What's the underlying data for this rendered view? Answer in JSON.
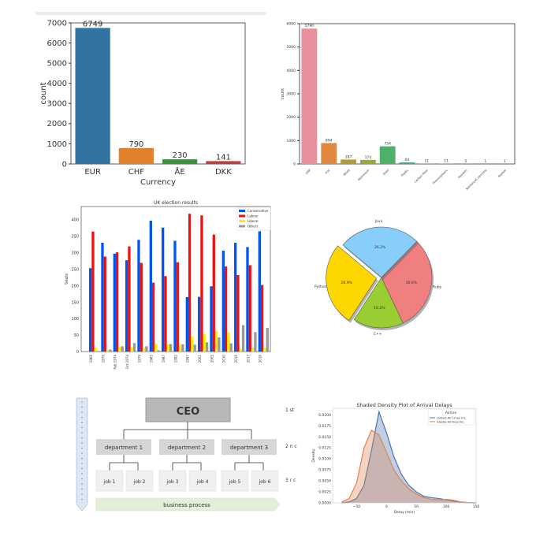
{
  "chart_data": [
    {
      "type": "bar",
      "categories": [
        "EUR",
        "CHF",
        "ÅE",
        "DKK"
      ],
      "values": [
        6749,
        790,
        230,
        141
      ],
      "colors": [
        "#3274a1",
        "#e1812c",
        "#3a923a",
        "#c03d3e"
      ],
      "xlabel": "Currency",
      "ylabel": "count",
      "ylim": [
        0,
        7000
      ],
      "yticks": [
        0,
        1000,
        2000,
        3000,
        4000,
        5000,
        6000,
        7000
      ]
    },
    {
      "type": "bar",
      "categories": [
        "GRP",
        "PVC",
        "Wood",
        "Aluminium",
        "Steel",
        "Plastic",
        "Carbon Fiber",
        "Thermoplastic",
        "Hypalon",
        "Reinforced concrete",
        "Rubber"
      ],
      "values": [
        5790,
        894,
        187,
        174,
        754,
        64,
        11,
        11,
        5,
        1,
        1
      ],
      "colors": [
        "#e8919c",
        "#e0883f",
        "#b09a3a",
        "#9aa83a",
        "#4fb06a",
        "#3aa890",
        "#3aa8a8",
        "#4aa8c8",
        "#8aa0e0",
        "#c090e0",
        "#e08cc8"
      ],
      "ylabel": "count",
      "ylim": [
        0,
        6000
      ],
      "yticks": [
        0,
        1000,
        2000,
        3000,
        4000,
        5000,
        6000
      ]
    },
    {
      "type": "bar",
      "title": "UK election results",
      "ylabel": "Seats",
      "categories": [
        "1966",
        "1970",
        "Feb 1974",
        "Oct 1974",
        "1979",
        "1983",
        "1987",
        "1992",
        "1997",
        "2001",
        "2005",
        "2010",
        "2015",
        "2017",
        "2019"
      ],
      "series": [
        {
          "name": "Conservative",
          "color": "#0055ee",
          "values": [
            253,
            330,
            297,
            277,
            339,
            397,
            376,
            336,
            165,
            166,
            198,
            306,
            330,
            317,
            365
          ]
        },
        {
          "name": "Labour",
          "color": "#ee1111",
          "values": [
            364,
            288,
            301,
            319,
            269,
            209,
            229,
            271,
            418,
            413,
            355,
            258,
            232,
            262,
            202
          ]
        },
        {
          "name": "Liberal",
          "color": "#ffee00",
          "values": [
            12,
            6,
            14,
            13,
            11,
            23,
            22,
            20,
            46,
            52,
            62,
            57,
            8,
            12,
            11
          ]
        },
        {
          "name": "Others",
          "color": "#999999",
          "values": [
            2,
            6,
            16,
            26,
            16,
            4,
            23,
            22,
            21,
            28,
            43,
            25,
            80,
            59,
            72
          ]
        }
      ],
      "ylim": [
        0,
        440
      ],
      "yticks": [
        0,
        50,
        100,
        150,
        200,
        250,
        300,
        350,
        400
      ],
      "legend": "top-right"
    },
    {
      "type": "pie",
      "labels": [
        "Python",
        "C++",
        "Ruby",
        "Java"
      ],
      "values": [
        26.9,
        16.2,
        30.6,
        26.2
      ],
      "value_labels": [
        "26.9%",
        "16.2%",
        "30.6%",
        "26.2%"
      ],
      "colors": [
        "#ffd700",
        "#9acd32",
        "#f08080",
        "#87cefa"
      ],
      "exploded": "Python",
      "shadow": true
    },
    {
      "type": "area",
      "title": "Shaded Density Plot of Arrival Delays",
      "xlabel": "Delay (min)",
      "ylabel": "Density",
      "legend_title": "Airline",
      "legend": "top-right",
      "x": [
        -75,
        -62.5,
        -50,
        -37.5,
        -25,
        -12.5,
        0,
        12.5,
        25,
        37.5,
        50,
        62.5,
        75,
        87.5,
        100,
        112.5,
        125,
        137.5,
        150
      ],
      "series": [
        {
          "name": "United Air Lines Inc.",
          "color": "#4c72b0",
          "values": [
            0,
            0.0002,
            0.001,
            0.004,
            0.012,
            0.0207,
            0.016,
            0.0105,
            0.0065,
            0.004,
            0.0025,
            0.0015,
            0.0012,
            0.001,
            0.0007,
            0.0004,
            0.0002,
            5e-05,
            0
          ]
        },
        {
          "name": "Alaska Airlines Inc.",
          "color": "#dd8452",
          "values": [
            0.0002,
            0.001,
            0.0045,
            0.0125,
            0.0165,
            0.0155,
            0.0115,
            0.0075,
            0.005,
            0.0032,
            0.002,
            0.0012,
            0.0008,
            0.0007,
            0.0008,
            0.0006,
            0.0002,
            5e-05,
            0
          ]
        }
      ],
      "xlim": [
        -90,
        150
      ],
      "xticks": [
        -50,
        0,
        50,
        100,
        150
      ],
      "xtick_labels": [
        "−50",
        "0",
        "50",
        "100",
        "150"
      ],
      "ylim": [
        0,
        0.0215
      ],
      "yticks": [
        0,
        0.0025,
        0.005,
        0.0075,
        0.01,
        0.0125,
        0.015,
        0.0175,
        0.02
      ],
      "ytick_labels": [
        "0.0000",
        "0.0025",
        "0.0050",
        "0.0075",
        "0.0100",
        "0.0125",
        "0.0150",
        "0.0175",
        "0.0200"
      ]
    }
  ],
  "org_chart": {
    "ceo": "CEO",
    "departments": [
      "department 1",
      "department 2",
      "department 3"
    ],
    "jobs": [
      "job 1",
      "job 2",
      "job 3",
      "job 4",
      "job 5",
      "job 6"
    ],
    "process": "business process",
    "levels": [
      "1 st",
      "2 n c",
      "3 r c"
    ]
  }
}
